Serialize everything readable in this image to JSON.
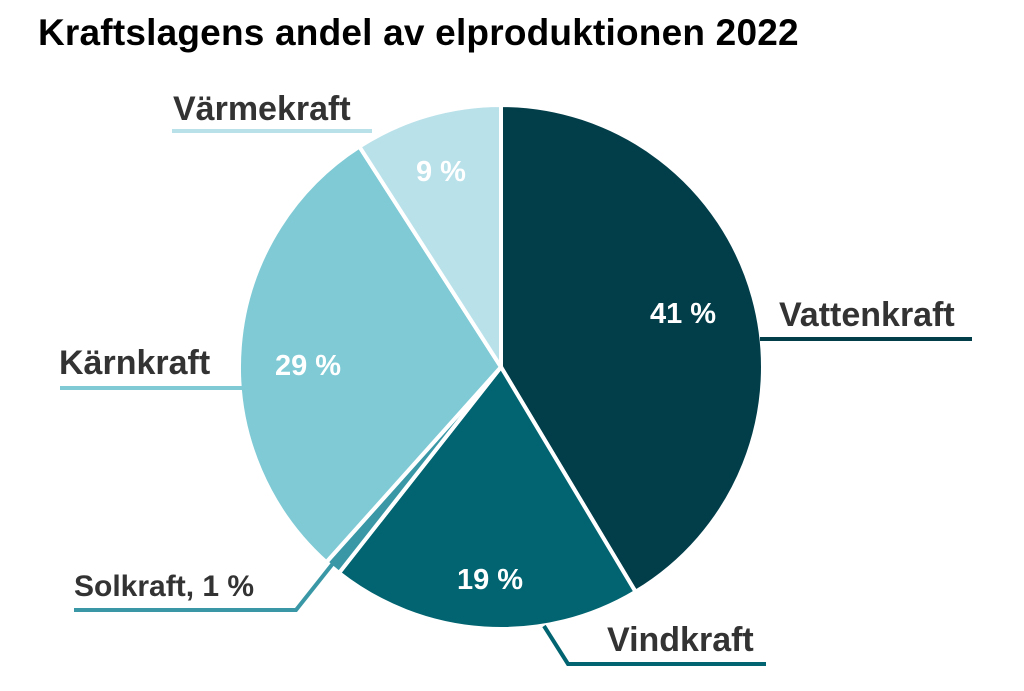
{
  "chart_data": {
    "type": "pie",
    "title": "Kraftslagens andel av elproduktionen 2022",
    "slices": [
      {
        "label": "Vattenkraft",
        "value": 41,
        "value_label": "41 %",
        "color": "#023e4a"
      },
      {
        "label": "Vindkraft",
        "value": 19,
        "value_label": "19 %",
        "color": "#016470"
      },
      {
        "label": "Solkraft",
        "value": 1,
        "value_label": "Solkraft, 1 %",
        "color": "#3a98a6"
      },
      {
        "label": "Kärnkraft",
        "value": 29,
        "value_label": "29 %",
        "color": "#7fcad5"
      },
      {
        "label": "Värmekraft",
        "value": 9,
        "value_label": "9 %",
        "color": "#b9e1ea"
      }
    ]
  }
}
